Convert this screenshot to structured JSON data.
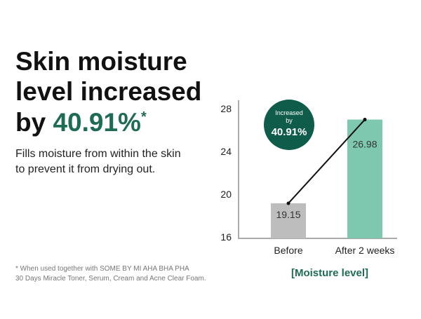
{
  "headline": {
    "lines": [
      "Skin moisture",
      "level increased",
      "by"
    ],
    "accent": "40.91%",
    "mark": "*"
  },
  "subtitle": [
    "Fills moisture from within the skin",
    "to prevent it from drying out."
  ],
  "footnote": [
    "* When used together with SOME BY MI AHA BHA PHA",
    "30 Days Miracle Toner, Serum, Cream and Acne Clear Foam."
  ],
  "chart_data": {
    "type": "bar",
    "categories": [
      "Before",
      "After 2 weeks"
    ],
    "values": [
      19.15,
      26.98
    ],
    "colors": [
      "#bdbdbd",
      "#7fc8b0"
    ],
    "line_color": "#111111",
    "ylim": [
      16,
      28
    ],
    "yticks": [
      16,
      20,
      24,
      28
    ],
    "x_label": "[Moisture level]",
    "badge": {
      "lines": [
        "Increased",
        "by"
      ],
      "value": "40.91%",
      "color": "#0f5c4a"
    }
  }
}
